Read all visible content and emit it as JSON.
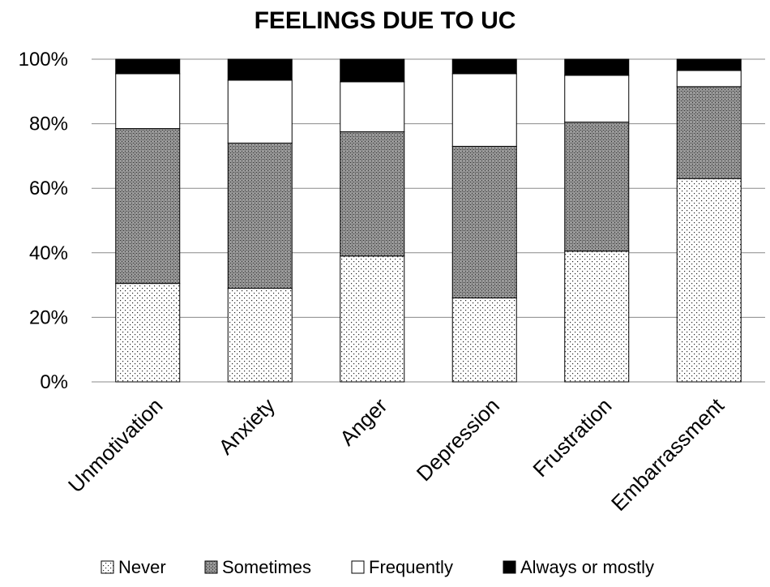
{
  "chart_data": {
    "type": "bar",
    "stacked": true,
    "title": "FEELINGS DUE TO UC",
    "xlabel": "",
    "ylabel": "",
    "ylim": [
      0,
      100
    ],
    "yticks": [
      "0%",
      "20%",
      "40%",
      "60%",
      "80%",
      "100%"
    ],
    "grid": true,
    "legend_position": "bottom",
    "categories": [
      "Unmotivation",
      "Anxiety",
      "Anger",
      "Depression",
      "Frustration",
      "Embarrassment"
    ],
    "series": [
      {
        "name": "Never",
        "values": [
          30.5,
          29,
          39,
          26,
          40.5,
          63
        ],
        "pattern": "dots",
        "color": "#ffffff"
      },
      {
        "name": "Sometimes",
        "values": [
          48,
          45,
          38.5,
          47,
          40,
          28.5
        ],
        "pattern": "crosshatch",
        "color": "#8c8c8c"
      },
      {
        "name": "Frequently",
        "values": [
          17,
          19.5,
          15.5,
          22.5,
          14.5,
          5
        ],
        "pattern": "solid",
        "color": "#ffffff"
      },
      {
        "name": "Always or mostly",
        "values": [
          4.5,
          6.5,
          7,
          4.5,
          5,
          3.5
        ],
        "pattern": "solid",
        "color": "#000000"
      }
    ]
  }
}
